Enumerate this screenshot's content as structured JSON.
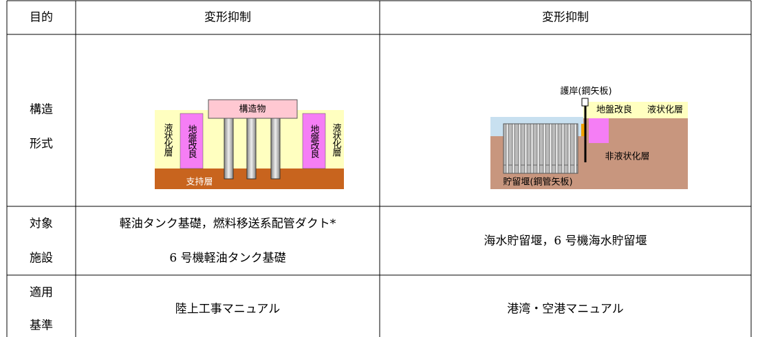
{
  "table": {
    "header": [
      "目的",
      "変形抑制",
      "変形抑制"
    ],
    "structure": {
      "label": [
        "構造",
        "形式"
      ]
    },
    "facility": {
      "label": [
        "対象",
        "施設"
      ],
      "left": [
        "軽油タンク基礎，燃料移送系配管ダクト*",
        "6 号機軽油タンク基礎"
      ],
      "right": "海水貯留堰，6 号機海水貯留堰"
    },
    "standard": {
      "label": [
        "適用",
        "基準"
      ],
      "left": "陸上工事マニュアル",
      "right": "港湾・空港マニュアル"
    }
  },
  "diagrams": {
    "left": {
      "structure": "構造物",
      "liquefiable": "液状化層",
      "improvement": "地盤改良",
      "bearing": "支持層"
    },
    "right": {
      "revetment": "護岸(鋼矢板)",
      "improvement": "地盤改良",
      "liquefiable": "液状化層",
      "non_liquefiable": "非液状化層",
      "weir": "貯留堰(鋼管矢板)"
    }
  }
}
